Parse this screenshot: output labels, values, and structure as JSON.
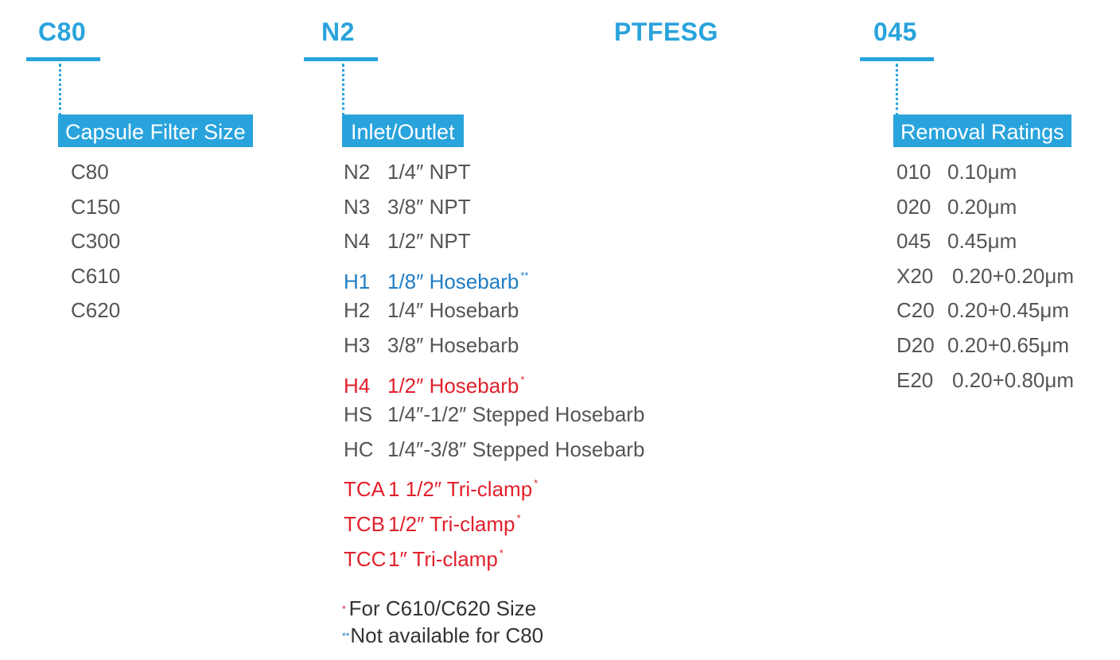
{
  "codes": {
    "size": "C80",
    "inlet": "N2",
    "membrane": "PTFESG",
    "rating": "045"
  },
  "tags": {
    "size": "Capsule Filter Size",
    "inlet": "Inlet/Outlet",
    "rating": "Removal Ratings"
  },
  "sizes": [
    "C80",
    "C150",
    "C300",
    "C610",
    "C620"
  ],
  "connections": [
    {
      "code": "N2",
      "desc": "1/4″ NPT",
      "mark": ""
    },
    {
      "code": "N3",
      "desc": "3/8″ NPT",
      "mark": ""
    },
    {
      "code": "N4",
      "desc": "1/2″ NPT",
      "mark": ""
    },
    {
      "code": "H1",
      "desc": "1/8″ Hosebarb",
      "mark": "**"
    },
    {
      "code": "H2",
      "desc": "1/4″ Hosebarb",
      "mark": ""
    },
    {
      "code": "H3",
      "desc": "3/8″ Hosebarb",
      "mark": ""
    },
    {
      "code": "H4",
      "desc": "1/2″ Hosebarb",
      "mark": "*"
    },
    {
      "code": "HS",
      "desc": "1/4″-1/2″ Stepped Hosebarb",
      "mark": ""
    },
    {
      "code": "HC",
      "desc": "1/4″-3/8″ Stepped Hosebarb",
      "mark": ""
    },
    {
      "code": "TCA",
      "desc": "1 1/2″ Tri-clamp",
      "mark": "*"
    },
    {
      "code": "TCB",
      "desc": "1/2″ Tri-clamp",
      "mark": "*"
    },
    {
      "code": "TCC",
      "desc": "1″ Tri-clamp",
      "mark": "*"
    }
  ],
  "ratings": [
    {
      "code": "010",
      "value": "0.10μm"
    },
    {
      "code": "020",
      "value": "0.20μm"
    },
    {
      "code": "045",
      "value": "0.45μm"
    },
    {
      "code": "X20",
      "value": "0.20+0.20μm"
    },
    {
      "code": "C20",
      "value": "0.20+0.45μm"
    },
    {
      "code": "D20",
      "value": "0.20+0.65μm"
    },
    {
      "code": "E20",
      "value": "0.20+0.80μm"
    }
  ],
  "notes": [
    {
      "mark": "*",
      "text": "For C610/C620 Size"
    },
    {
      "mark": "**",
      "text": "Not available for C80"
    }
  ],
  "colors": {
    "accent": "#29a3dc",
    "text": "#555555",
    "blue_note": "#1f7cc3",
    "red_note": "#e2202b"
  }
}
